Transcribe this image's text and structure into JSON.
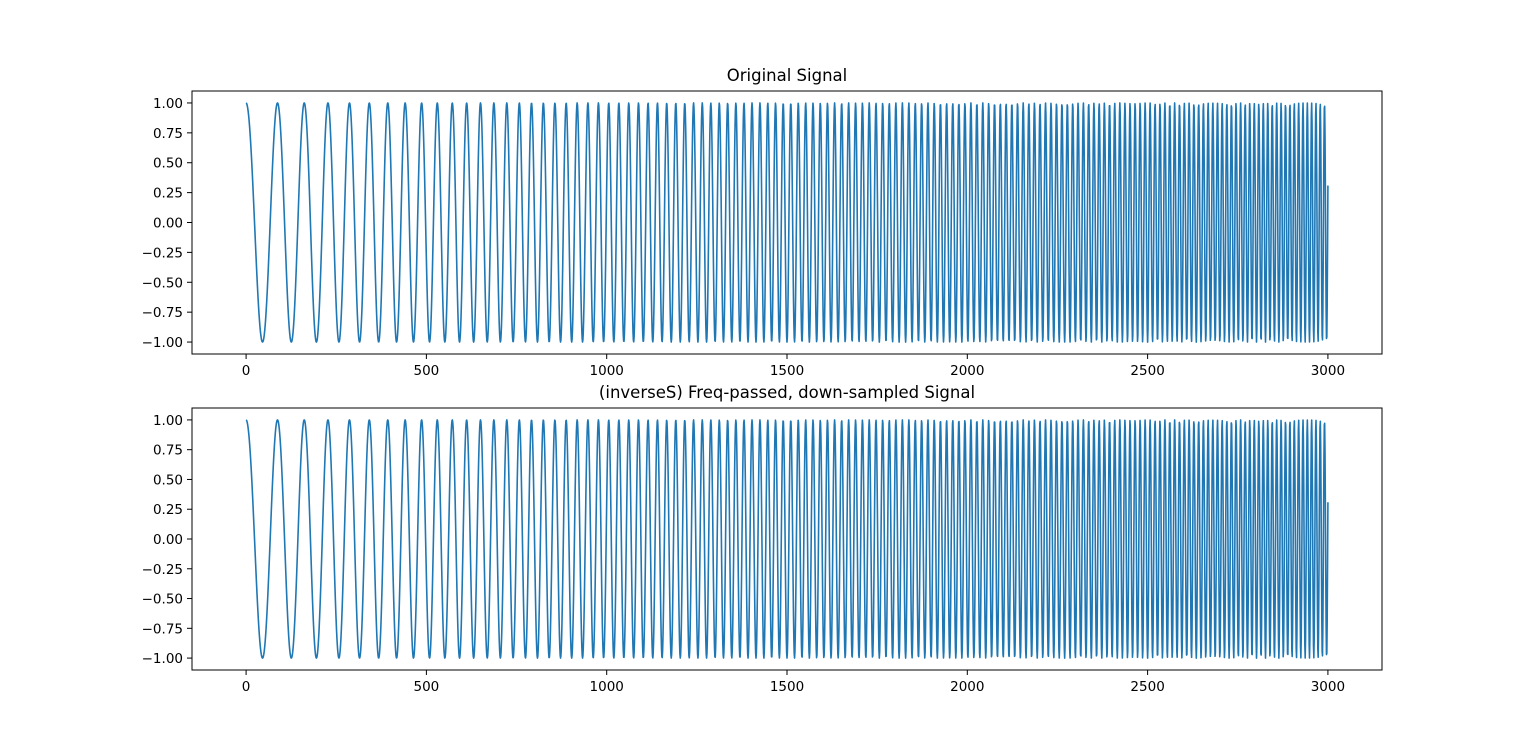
{
  "chart_data": [
    {
      "type": "line",
      "title": "Original Signal",
      "xlabel": "",
      "ylabel": "",
      "xlim": [
        -150,
        3150
      ],
      "ylim": [
        -1.1,
        1.1
      ],
      "xticks": [
        0,
        500,
        1000,
        1500,
        2000,
        2500,
        3000
      ],
      "yticks": [
        -1.0,
        -0.75,
        -0.5,
        -0.25,
        0.0,
        0.25,
        0.5,
        0.75,
        1.0
      ],
      "xtick_labels": [
        "0",
        "500",
        "1000",
        "1500",
        "2000",
        "2500",
        "3000"
      ],
      "ytick_labels": [
        "−1.00",
        "−0.75",
        "−0.50",
        "−0.25",
        "0.00",
        "0.25",
        "0.50",
        "0.75",
        "1.00"
      ],
      "grid": false,
      "series": [
        {
          "color": "#1f77b4",
          "formula": "cos(2*pi*(f0*x + 0.5*k*x^2))",
          "f0": 0.0104,
          "k": 2.48e-05,
          "x_start": 0,
          "x_end": 3000,
          "x_step": 1
        }
      ]
    },
    {
      "type": "line",
      "title": "(inverseS) Freq-passed, down-sampled Signal",
      "xlabel": "",
      "ylabel": "",
      "xlim": [
        -150,
        3150
      ],
      "ylim": [
        -1.1,
        1.1
      ],
      "xticks": [
        0,
        500,
        1000,
        1500,
        2000,
        2500,
        3000
      ],
      "yticks": [
        -1.0,
        -0.75,
        -0.5,
        -0.25,
        0.0,
        0.25,
        0.5,
        0.75,
        1.0
      ],
      "xtick_labels": [
        "0",
        "500",
        "1000",
        "1500",
        "2000",
        "2500",
        "3000"
      ],
      "ytick_labels": [
        "−1.00",
        "−0.75",
        "−0.50",
        "−0.25",
        "0.00",
        "0.25",
        "0.50",
        "0.75",
        "1.00"
      ],
      "grid": false,
      "series": [
        {
          "color": "#1f77b4",
          "formula": "cos(2*pi*(f0*x + 0.5*k*x^2))",
          "f0": 0.0104,
          "k": 2.48e-05,
          "x_start": 0,
          "x_end": 3000,
          "x_step": 1
        }
      ]
    }
  ]
}
